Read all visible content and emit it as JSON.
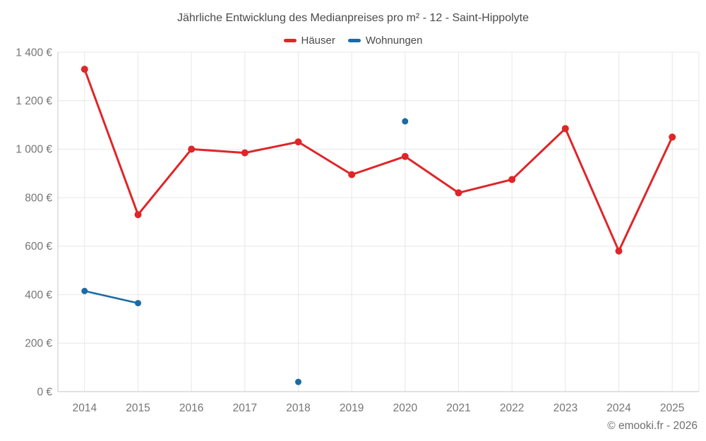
{
  "chart_data": {
    "type": "line",
    "title": "Jährliche Entwicklung des Medianpreises pro m² - 12 - Saint-Hippolyte",
    "categories": [
      "2014",
      "2015",
      "2016",
      "2017",
      "2018",
      "2019",
      "2020",
      "2021",
      "2022",
      "2023",
      "2024",
      "2025"
    ],
    "series": [
      {
        "name": "Häuser",
        "color": "#e02528",
        "values": [
          1330,
          730,
          1000,
          985,
          1030,
          895,
          970,
          820,
          875,
          1085,
          580,
          1050
        ]
      },
      {
        "name": "Wohnungen",
        "color": "#1a6ba5",
        "values": [
          415,
          365,
          null,
          null,
          40,
          null,
          1115,
          null,
          null,
          null,
          null,
          null
        ]
      }
    ],
    "ylim": [
      0,
      1400
    ],
    "ytick_step": 200,
    "ytick_labels": [
      "0 €",
      "200 €",
      "400 €",
      "600 €",
      "800 €",
      "1 000 €",
      "1 200 €",
      "1 400 €"
    ],
    "grid": true,
    "legend_position": "top",
    "unit": "€"
  },
  "footer": {
    "copyright": "© emooki.fr - 2026"
  },
  "colors": {
    "grid": "#e7e7e7",
    "axis": "#c6c6c6",
    "title_text": "#4a4a4a",
    "tick_text": "#757575",
    "footer_text": "#6e6e6e"
  }
}
